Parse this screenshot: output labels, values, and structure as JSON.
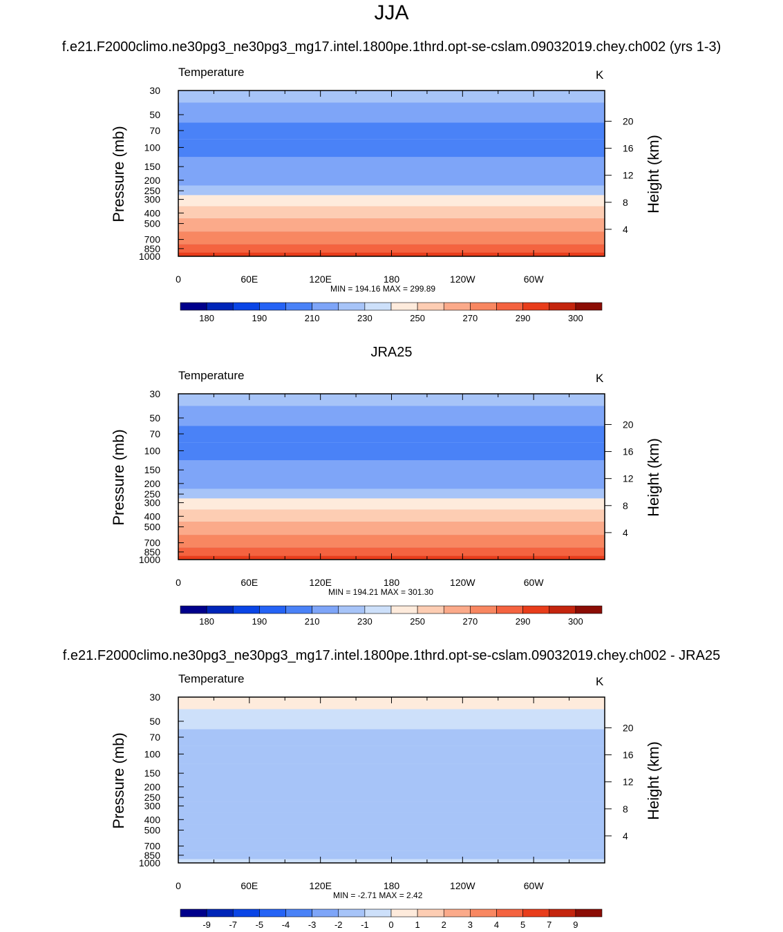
{
  "main_title": "JJA",
  "chart_data": [
    {
      "type": "heatmap",
      "title": "f.e21.F2000climo.ne30pg3_ne30pg3_mg17.intel.1800pe.1thrd.opt-se-cslam.09032019.chey.ch002 (yrs 1-3)",
      "variable": "Temperature",
      "units": "K",
      "xlabel": "",
      "ylabel": "Pressure (mb)",
      "ylabel_right": "Height (km)",
      "x_ticks": [
        "0",
        "60E",
        "120E",
        "180",
        "120W",
        "60W"
      ],
      "y_ticks": [
        "30",
        "50",
        "70",
        "100",
        "150",
        "200",
        "250",
        "300",
        "400",
        "500",
        "700",
        "850",
        "1000"
      ],
      "height_ticks": [
        "20",
        "16",
        "12",
        "8",
        "4"
      ],
      "min_max_text": "MIN = 194.16  MAX = 299.89",
      "colorbar_labels": [
        "180",
        "190",
        "210",
        "230",
        "250",
        "270",
        "290",
        "300"
      ],
      "colors": [
        "#00008b",
        "#0025b8",
        "#0a45e6",
        "#2563f5",
        "#4a82f7",
        "#7ea5f8",
        "#a7c4f8",
        "#cde0fa",
        "#feebdc",
        "#fdcdb3",
        "#fbaa8a",
        "#f88761",
        "#f46340",
        "#e83d1b",
        "#c4250e",
        "#8b0d05"
      ],
      "pressure_levels": [
        1000,
        850,
        700,
        500,
        400,
        300,
        250,
        200,
        150,
        100,
        70,
        50,
        30
      ],
      "zonal_mean_values": [
        292,
        285,
        278,
        265,
        255,
        240,
        228,
        218,
        210,
        200,
        207,
        215,
        225
      ]
    },
    {
      "type": "heatmap",
      "title": "JRA25",
      "variable": "Temperature",
      "units": "K",
      "xlabel": "",
      "ylabel": "Pressure (mb)",
      "ylabel_right": "Height (km)",
      "x_ticks": [
        "0",
        "60E",
        "120E",
        "180",
        "120W",
        "60W"
      ],
      "y_ticks": [
        "30",
        "50",
        "70",
        "100",
        "150",
        "200",
        "250",
        "300",
        "400",
        "500",
        "700",
        "850",
        "1000"
      ],
      "height_ticks": [
        "20",
        "16",
        "12",
        "8",
        "4"
      ],
      "min_max_text": "MIN = 194.21  MAX = 301.30",
      "colorbar_labels": [
        "180",
        "190",
        "210",
        "230",
        "250",
        "270",
        "290",
        "300"
      ],
      "colors": [
        "#00008b",
        "#0025b8",
        "#0a45e6",
        "#2563f5",
        "#4a82f7",
        "#7ea5f8",
        "#a7c4f8",
        "#cde0fa",
        "#feebdc",
        "#fdcdb3",
        "#fbaa8a",
        "#f88761",
        "#f46340",
        "#e83d1b",
        "#c4250e",
        "#8b0d05"
      ],
      "pressure_levels": [
        1000,
        850,
        700,
        500,
        400,
        300,
        250,
        200,
        150,
        100,
        70,
        50,
        30
      ],
      "zonal_mean_values": [
        294,
        286,
        279,
        266,
        256,
        241,
        229,
        219,
        211,
        201,
        207,
        215,
        224
      ]
    },
    {
      "type": "heatmap",
      "title": "f.e21.F2000climo.ne30pg3_ne30pg3_mg17.intel.1800pe.1thrd.opt-se-cslam.09032019.chey.ch002 - JRA25",
      "variable": "Temperature",
      "units": "K",
      "xlabel": "",
      "ylabel": "Pressure (mb)",
      "ylabel_right": "Height (km)",
      "x_ticks": [
        "0",
        "60E",
        "120E",
        "180",
        "120W",
        "60W"
      ],
      "y_ticks": [
        "30",
        "50",
        "70",
        "100",
        "150",
        "200",
        "250",
        "300",
        "400",
        "500",
        "700",
        "850",
        "1000"
      ],
      "height_ticks": [
        "20",
        "16",
        "12",
        "8",
        "4"
      ],
      "min_max_text": "MIN =  -2.71  MAX =   2.42",
      "colorbar_labels": [
        "-9",
        "-7",
        "-5",
        "-4",
        "-3",
        "-2",
        "-1",
        "0",
        "1",
        "2",
        "3",
        "4",
        "5",
        "7",
        "9"
      ],
      "colors": [
        "#00008b",
        "#0025b8",
        "#0a45e6",
        "#2563f5",
        "#4a82f7",
        "#7ea5f8",
        "#a7c4f8",
        "#cde0fa",
        "#feebdc",
        "#fdcdb3",
        "#fbaa8a",
        "#f88761",
        "#f46340",
        "#e83d1b",
        "#c4250e",
        "#8b0d05"
      ],
      "pressure_levels": [
        1000,
        850,
        700,
        500,
        400,
        300,
        250,
        200,
        150,
        100,
        70,
        50,
        30
      ],
      "zonal_mean_values": [
        -0.5,
        -1.5,
        -1.2,
        -1.5,
        -1.5,
        -1.8,
        -1.6,
        -1.5,
        -1.3,
        -1.2,
        -1.4,
        -0.8,
        0.5
      ]
    }
  ]
}
